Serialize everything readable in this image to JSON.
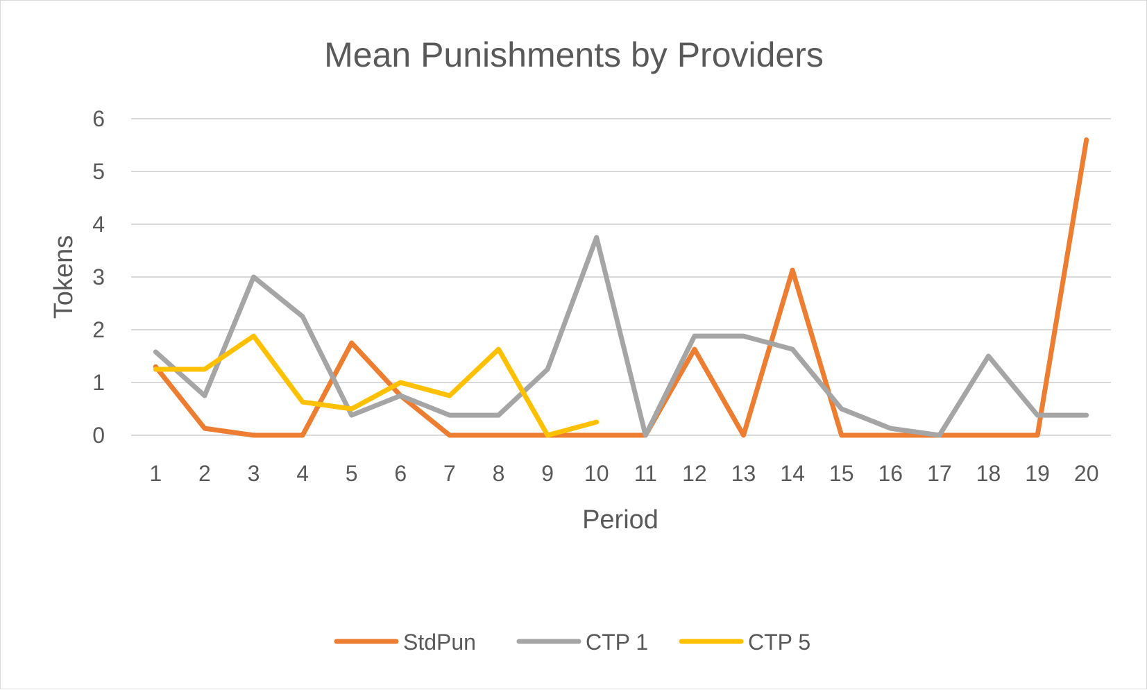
{
  "chart_data": {
    "type": "line",
    "title": "Mean Punishments by Providers",
    "xlabel": "Period",
    "ylabel": "Tokens",
    "categories": [
      "1",
      "2",
      "3",
      "4",
      "5",
      "6",
      "7",
      "8",
      "9",
      "10",
      "11",
      "12",
      "13",
      "14",
      "15",
      "16",
      "17",
      "18",
      "19",
      "20"
    ],
    "y_ticks": [
      "0",
      "1",
      "2",
      "3",
      "4",
      "5",
      "6"
    ],
    "ylim": [
      0,
      6
    ],
    "grid": true,
    "legend_position": "bottom",
    "series": [
      {
        "name": "StdPun",
        "color": "#ED7D31",
        "values": [
          1.3,
          0.13,
          0,
          0,
          1.75,
          0.75,
          0,
          0,
          0,
          0,
          0,
          1.63,
          0,
          3.13,
          0,
          0,
          0,
          0,
          0,
          5.6
        ]
      },
      {
        "name": "CTP 1",
        "color": "#A5A5A5",
        "values": [
          1.58,
          0.75,
          3.0,
          2.25,
          0.38,
          0.75,
          0.38,
          0.38,
          1.25,
          3.75,
          0,
          1.88,
          1.88,
          1.63,
          0.5,
          0.13,
          0,
          1.5,
          0.38,
          0.38
        ]
      },
      {
        "name": "CTP 5",
        "color": "#FFC000",
        "values": [
          1.25,
          1.25,
          1.88,
          0.63,
          0.5,
          1.0,
          0.75,
          1.63,
          0,
          0.25,
          null,
          null,
          null,
          null,
          null,
          null,
          null,
          null,
          null,
          null
        ]
      }
    ]
  }
}
